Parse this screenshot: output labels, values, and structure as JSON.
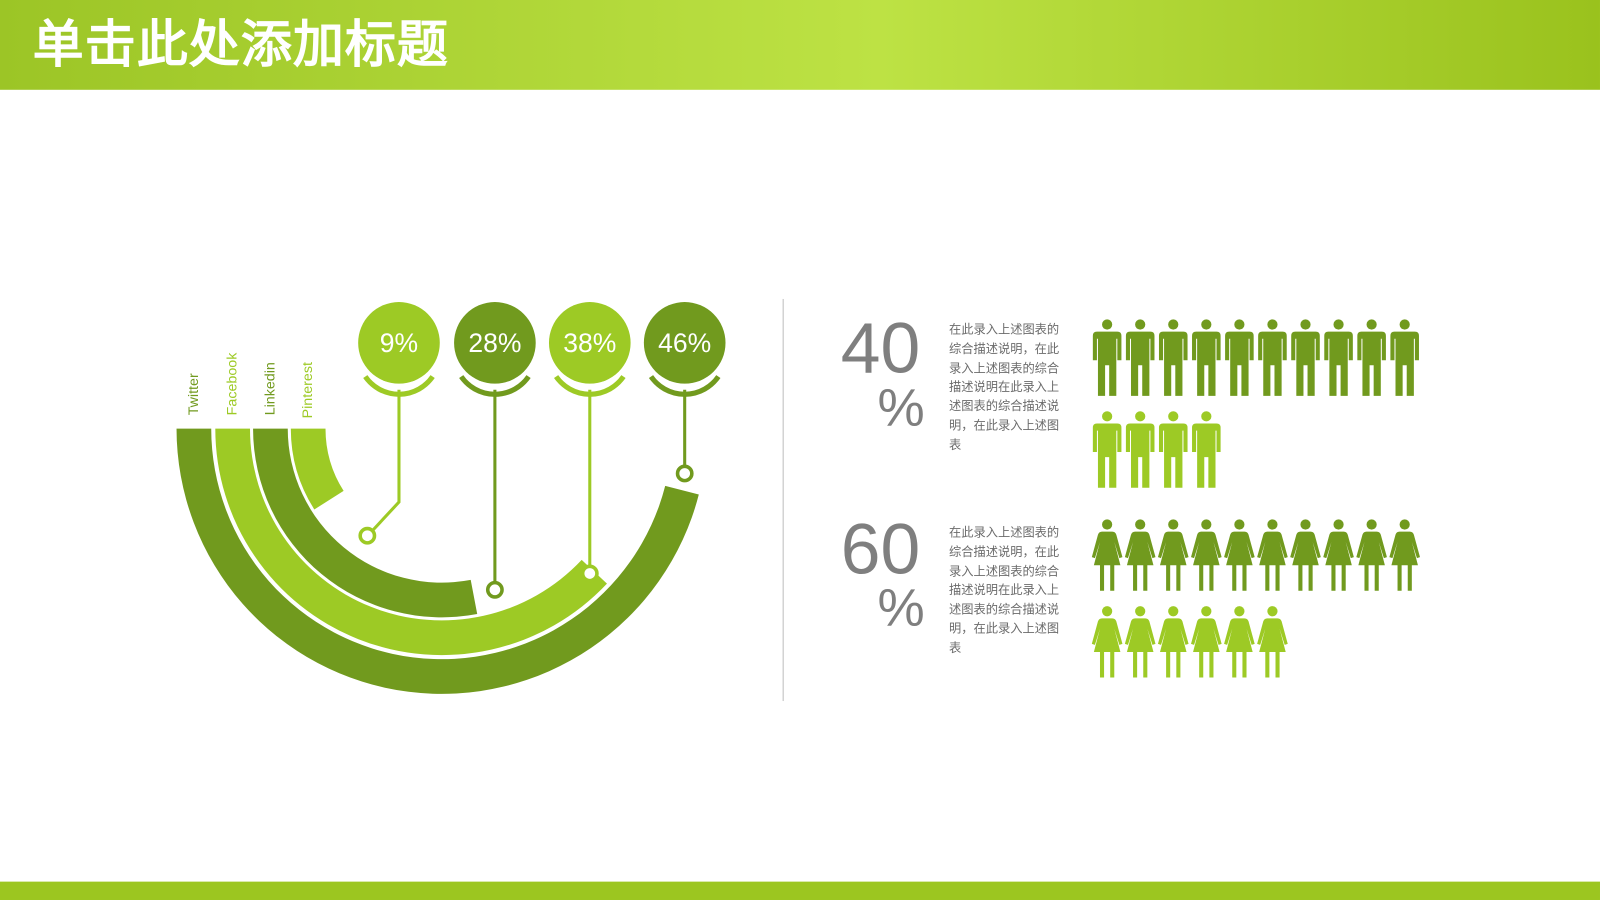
{
  "header": {
    "title": "单击此处添加标题"
  },
  "colors": {
    "dark": "#719a1e",
    "light": "#9dca25",
    "text_gray": "#7f7f7f"
  },
  "chart_data": {
    "type": "radial-bar",
    "categories": [
      "Twitter",
      "Facebook",
      "Linkedin",
      "Pinterest"
    ],
    "values": [
      46,
      38,
      28,
      9
    ],
    "value_labels": [
      "9%",
      "28%",
      "38%",
      "46%"
    ],
    "bubble_order_values": [
      9,
      28,
      38,
      46
    ],
    "unit": "%"
  },
  "stats": [
    {
      "number": "40",
      "unit": "%",
      "description": "在此录入上述图表的综合描述说明，在此录入上述图表的综合描述说明在此录入上述图表的综合描述说明，在此录入上述图表",
      "icon": "man-icon",
      "dark_count": 10,
      "light_count": 4
    },
    {
      "number": "60",
      "unit": "%",
      "description": "在此录入上述图表的综合描述说明，在此录入上述图表的综合描述说明在此录入上述图表的综合描述说明，在此录入上述图表",
      "icon": "woman-icon",
      "dark_count": 10,
      "light_count": 6
    }
  ]
}
